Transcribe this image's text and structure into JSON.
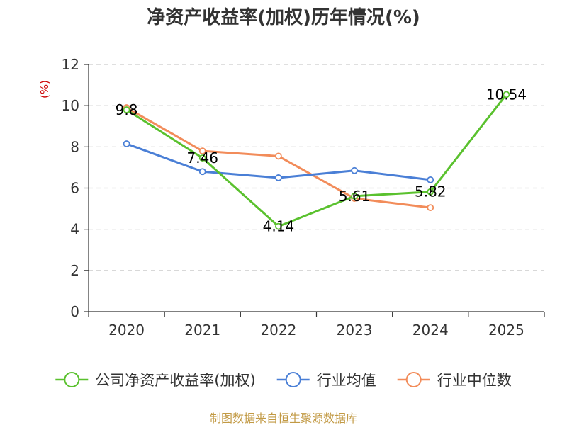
{
  "chart_data": {
    "type": "line",
    "title": "净资产收益率(加权)历年情况(%)",
    "ylabel": "(%)",
    "xlabel": "",
    "categories": [
      "2020",
      "2021",
      "2022",
      "2023",
      "2024",
      "2025"
    ],
    "ylim": [
      0,
      12
    ],
    "yticks": [
      "0",
      "2",
      "4",
      "6",
      "8",
      "10",
      "12"
    ],
    "grid": true,
    "legend_position": "bottom",
    "series": [
      {
        "name": "公司净资产收益率(加权)",
        "color": "#5ac12e",
        "values": [
          9.8,
          7.46,
          4.14,
          5.61,
          5.82,
          10.54
        ],
        "labels": [
          "9.8",
          "7.46",
          "4.14",
          "5.61",
          "5.82",
          "10.54"
        ]
      },
      {
        "name": "行业均值",
        "color": "#4a7fd6",
        "values": [
          8.15,
          6.8,
          6.5,
          6.85,
          6.4,
          null
        ]
      },
      {
        "name": "行业中位数",
        "color": "#f28c5a",
        "values": [
          9.9,
          7.8,
          7.55,
          5.5,
          5.05,
          null
        ]
      }
    ],
    "source": "制图数据来自恒生聚源数据库"
  }
}
